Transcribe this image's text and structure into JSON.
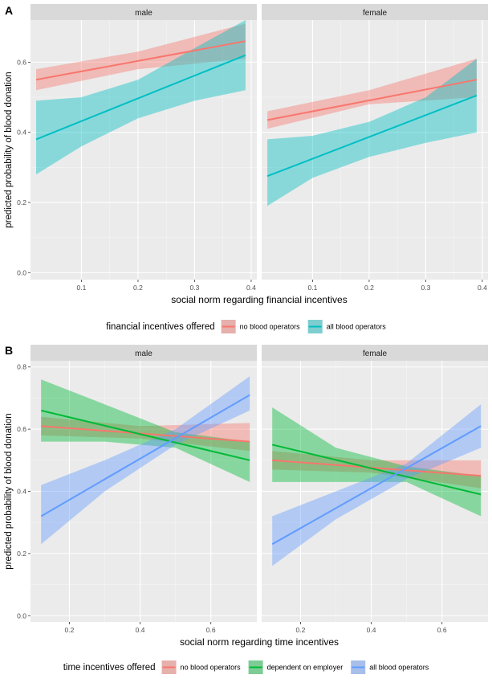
{
  "chart_data": [
    {
      "panel_label": "A",
      "type": "line",
      "ylabel": "predicted probability of blood donation",
      "xlabel": "social norm regarding financial incentives",
      "ylim": [
        -0.02,
        0.72
      ],
      "yticks": [
        0.0,
        0.2,
        0.4,
        0.6
      ],
      "ytick_labels": [
        "0.0",
        "0.2",
        "0.4",
        "0.6"
      ],
      "xticks": [
        0.1,
        0.2,
        0.3,
        0.4
      ],
      "xtick_labels": [
        "0.1",
        "0.2",
        "0.3",
        "0.4"
      ],
      "xlim": [
        0.01,
        0.41
      ],
      "grid": true,
      "legend_title": "financial incentives offered",
      "legend_position": "bottom",
      "facets": [
        {
          "strip": "male",
          "series": [
            {
              "name": "no blood operators",
              "color": "#F8766D",
              "x": [
                0.02,
                0.39
              ],
              "y": [
                0.55,
                0.66
              ],
              "lower": [
                [
                  0.02,
                  0.52
                ],
                [
                  0.2,
                  0.58
                ],
                [
                  0.39,
                  0.61
                ]
              ],
              "upper": [
                [
                  0.02,
                  0.58
                ],
                [
                  0.2,
                  0.63
                ],
                [
                  0.39,
                  0.71
                ]
              ]
            },
            {
              "name": "all blood operators",
              "color": "#00BFC4",
              "x": [
                0.02,
                0.39
              ],
              "y": [
                0.38,
                0.62
              ],
              "lower": [
                [
                  0.02,
                  0.28
                ],
                [
                  0.1,
                  0.36
                ],
                [
                  0.2,
                  0.44
                ],
                [
                  0.3,
                  0.49
                ],
                [
                  0.39,
                  0.52
                ]
              ],
              "upper": [
                [
                  0.02,
                  0.49
                ],
                [
                  0.1,
                  0.5
                ],
                [
                  0.2,
                  0.55
                ],
                [
                  0.3,
                  0.64
                ],
                [
                  0.39,
                  0.72
                ]
              ]
            }
          ]
        },
        {
          "strip": "female",
          "series": [
            {
              "name": "no blood operators",
              "color": "#F8766D",
              "x": [
                0.02,
                0.39
              ],
              "y": [
                0.435,
                0.55
              ],
              "lower": [
                [
                  0.02,
                  0.41
                ],
                [
                  0.2,
                  0.48
                ],
                [
                  0.39,
                  0.5
                ]
              ],
              "upper": [
                [
                  0.02,
                  0.46
                ],
                [
                  0.2,
                  0.52
                ],
                [
                  0.39,
                  0.61
                ]
              ]
            },
            {
              "name": "all blood operators",
              "color": "#00BFC4",
              "x": [
                0.02,
                0.39
              ],
              "y": [
                0.275,
                0.505
              ],
              "lower": [
                [
                  0.02,
                  0.19
                ],
                [
                  0.1,
                  0.27
                ],
                [
                  0.2,
                  0.33
                ],
                [
                  0.3,
                  0.37
                ],
                [
                  0.39,
                  0.4
                ]
              ],
              "upper": [
                [
                  0.02,
                  0.38
                ],
                [
                  0.1,
                  0.39
                ],
                [
                  0.2,
                  0.43
                ],
                [
                  0.3,
                  0.5
                ],
                [
                  0.39,
                  0.61
                ]
              ]
            }
          ]
        }
      ]
    },
    {
      "panel_label": "B",
      "type": "line",
      "ylabel": "predicted probability of blood donation",
      "xlabel": "social norm regarding time incentives",
      "ylim": [
        -0.02,
        0.82
      ],
      "yticks": [
        0.0,
        0.2,
        0.4,
        0.6,
        0.8
      ],
      "ytick_labels": [
        "0.0",
        "0.2",
        "0.4",
        "0.6",
        "0.8"
      ],
      "xticks": [
        0.2,
        0.4,
        0.6
      ],
      "xtick_labels": [
        "0.2",
        "0.4",
        "0.6"
      ],
      "xlim": [
        0.09,
        0.73
      ],
      "grid": true,
      "legend_title": "time incentives offered",
      "legend_position": "bottom",
      "facets": [
        {
          "strip": "male",
          "series": [
            {
              "name": "no blood operators",
              "color": "#F8766D",
              "x": [
                0.12,
                0.71
              ],
              "y": [
                0.61,
                0.56
              ],
              "lower": [
                [
                  0.12,
                  0.58
                ],
                [
                  0.4,
                  0.57
                ],
                [
                  0.71,
                  0.53
                ]
              ],
              "upper": [
                [
                  0.12,
                  0.64
                ],
                [
                  0.4,
                  0.61
                ],
                [
                  0.71,
                  0.62
                ]
              ]
            },
            {
              "name": "dependent on employer",
              "color": "#00BA38",
              "x": [
                0.12,
                0.71
              ],
              "y": [
                0.66,
                0.5
              ],
              "lower": [
                [
                  0.12,
                  0.56
                ],
                [
                  0.3,
                  0.56
                ],
                [
                  0.5,
                  0.54
                ],
                [
                  0.71,
                  0.43
                ]
              ],
              "upper": [
                [
                  0.12,
                  0.76
                ],
                [
                  0.3,
                  0.68
                ],
                [
                  0.5,
                  0.59
                ],
                [
                  0.71,
                  0.56
                ]
              ]
            },
            {
              "name": "all blood operators",
              "color": "#619CFF",
              "x": [
                0.12,
                0.71
              ],
              "y": [
                0.32,
                0.71
              ],
              "lower": [
                [
                  0.12,
                  0.23
                ],
                [
                  0.3,
                  0.4
                ],
                [
                  0.5,
                  0.55
                ],
                [
                  0.71,
                  0.66
                ]
              ],
              "upper": [
                [
                  0.12,
                  0.42
                ],
                [
                  0.3,
                  0.5
                ],
                [
                  0.5,
                  0.6
                ],
                [
                  0.71,
                  0.77
                ]
              ]
            }
          ]
        },
        {
          "strip": "female",
          "series": [
            {
              "name": "no blood operators",
              "color": "#F8766D",
              "x": [
                0.12,
                0.71
              ],
              "y": [
                0.5,
                0.45
              ],
              "lower": [
                [
                  0.12,
                  0.47
                ],
                [
                  0.4,
                  0.46
                ],
                [
                  0.71,
                  0.41
                ]
              ],
              "upper": [
                [
                  0.12,
                  0.53
                ],
                [
                  0.4,
                  0.5
                ],
                [
                  0.71,
                  0.5
                ]
              ]
            },
            {
              "name": "dependent on employer",
              "color": "#00BA38",
              "x": [
                0.12,
                0.71
              ],
              "y": [
                0.55,
                0.39
              ],
              "lower": [
                [
                  0.12,
                  0.43
                ],
                [
                  0.3,
                  0.43
                ],
                [
                  0.5,
                  0.43
                ],
                [
                  0.71,
                  0.32
                ]
              ],
              "upper": [
                [
                  0.12,
                  0.67
                ],
                [
                  0.3,
                  0.54
                ],
                [
                  0.5,
                  0.48
                ],
                [
                  0.71,
                  0.45
                ]
              ]
            },
            {
              "name": "all blood operators",
              "color": "#619CFF",
              "x": [
                0.12,
                0.71
              ],
              "y": [
                0.23,
                0.61
              ],
              "lower": [
                [
                  0.12,
                  0.16
                ],
                [
                  0.3,
                  0.31
                ],
                [
                  0.5,
                  0.44
                ],
                [
                  0.71,
                  0.54
                ]
              ],
              "upper": [
                [
                  0.12,
                  0.32
                ],
                [
                  0.3,
                  0.4
                ],
                [
                  0.5,
                  0.49
                ],
                [
                  0.71,
                  0.68
                ]
              ]
            }
          ]
        }
      ]
    }
  ]
}
